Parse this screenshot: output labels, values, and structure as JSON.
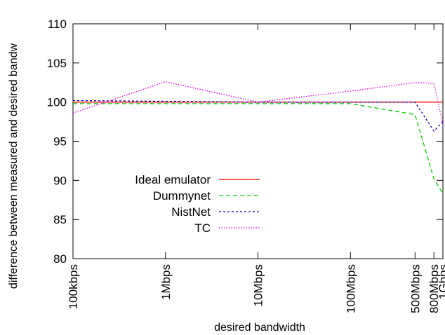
{
  "chart_data": {
    "type": "line",
    "xlabel": "desired bandwidth",
    "ylabel": "difference between measured and desired bandw",
    "xscale": "log",
    "xlim": [
      100,
      1000000
    ],
    "ylim": [
      80,
      110
    ],
    "x_ticks": [
      {
        "value": 100,
        "label": "100kbps"
      },
      {
        "value": 1000,
        "label": "1Mbps"
      },
      {
        "value": 10000,
        "label": "10Mbps"
      },
      {
        "value": 100000,
        "label": "100Mbps"
      },
      {
        "value": 500000,
        "label": "500Mbps"
      },
      {
        "value": 800000,
        "label": "800Mbps"
      },
      {
        "value": 1000000,
        "label": "1Gbps"
      }
    ],
    "y_ticks": [
      80,
      85,
      90,
      95,
      100,
      105,
      110
    ],
    "grid": false,
    "legend_position": "bottom-left",
    "x": [
      100,
      1000,
      10000,
      100000,
      500000,
      800000,
      1000000
    ],
    "series": [
      {
        "name": "Ideal emulator",
        "color": "#ff0000",
        "dash": "solid",
        "values": [
          100,
          100,
          100,
          100,
          100,
          100,
          100
        ]
      },
      {
        "name": "Dummynet",
        "color": "#00cc00",
        "dash": "dashed",
        "values": [
          99.8,
          99.8,
          99.8,
          99.8,
          98.4,
          90.2,
          88.3
        ]
      },
      {
        "name": "NistNet",
        "color": "#0000cc",
        "dash": "dotted",
        "values": [
          100.2,
          100.1,
          100.0,
          100.0,
          100.0,
          96.3,
          97.5
        ]
      },
      {
        "name": "TC",
        "color": "#cc00cc",
        "dash": "dotted-fine",
        "values": [
          98.6,
          102.6,
          100.0,
          101.4,
          102.5,
          102.4,
          97.2
        ]
      }
    ]
  }
}
